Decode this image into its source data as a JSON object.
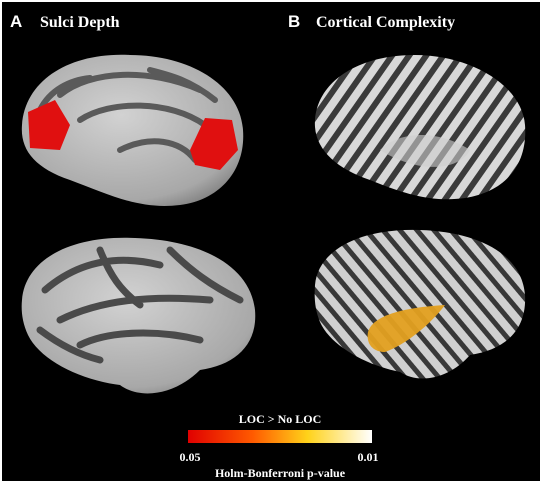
{
  "panels": [
    {
      "letter": "A",
      "title": "Sulci Depth"
    },
    {
      "letter": "B",
      "title": "Cortical Complexity"
    }
  ],
  "colorbar": {
    "title": "LOC > No LOC",
    "left_label": "0.05",
    "right_label": "0.01",
    "caption": "Holm-Bonferroni p-value"
  }
}
